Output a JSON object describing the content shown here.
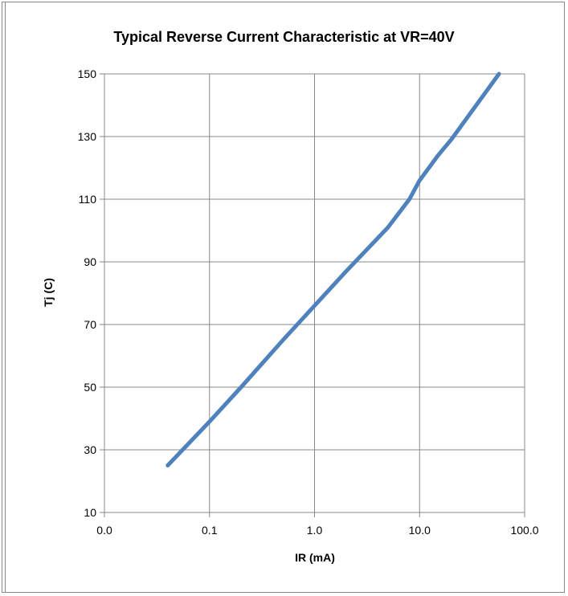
{
  "chart_data": {
    "type": "line",
    "title": "Typical Reverse Current Characteristic at VR=40V",
    "xlabel": "IR (mA)",
    "ylabel": "Tj (C)",
    "x_scale": "log",
    "xlim": [
      0.01,
      100
    ],
    "ylim": [
      10,
      150
    ],
    "x_tick_labels": [
      "0.0",
      "0.1",
      "1.0",
      "10.0",
      "100.0"
    ],
    "x_tick_values": [
      0.01,
      0.1,
      1,
      10,
      100
    ],
    "y_ticks": [
      10,
      30,
      50,
      70,
      90,
      110,
      130,
      150
    ],
    "grid": true,
    "legend": "none",
    "series": [
      {
        "color": "#4f81bd",
        "x": [
          0.04,
          0.1,
          0.2,
          0.5,
          1.0,
          2.0,
          5.0,
          8.0,
          10.0,
          15.0,
          20.0,
          57.0
        ],
        "y": [
          25,
          39,
          50,
          65,
          76,
          87,
          101,
          110,
          116,
          124,
          129,
          150
        ]
      }
    ]
  }
}
